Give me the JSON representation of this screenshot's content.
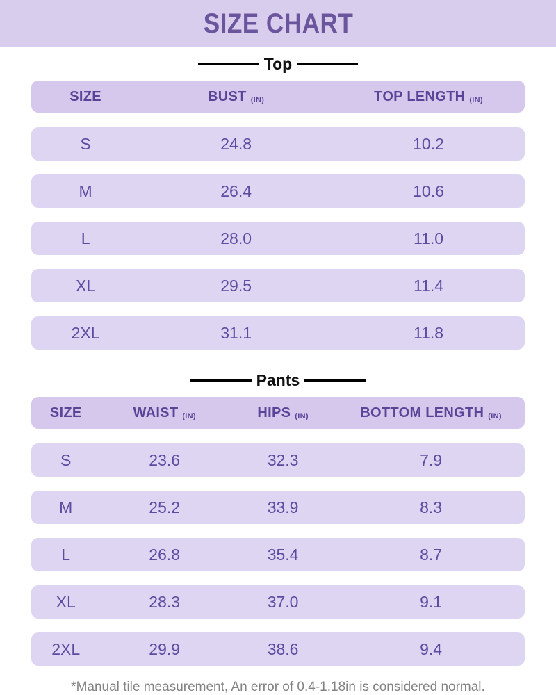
{
  "page": {
    "title": "SIZE CHART",
    "footnote": "*Manual tile measurement, An error of 0.4-1.18in is considered normal."
  },
  "colors": {
    "band_background": "#d9cdee",
    "header_row_background": "#d5c8ec",
    "data_row_background": "#ded5f2",
    "title_text": "#6b559c",
    "header_text": "#5a4497",
    "data_text": "#5c4ba0",
    "divider_line": "#000000",
    "footnote_text": "#828282"
  },
  "top_section": {
    "label": "Top",
    "columns": [
      {
        "label": "SIZE",
        "unit": ""
      },
      {
        "label": "BUST",
        "unit": "(IN)"
      },
      {
        "label": "TOP LENGTH",
        "unit": "(IN)"
      }
    ],
    "rows": [
      {
        "size": "S",
        "bust": "24.8",
        "length": "10.2"
      },
      {
        "size": "M",
        "bust": "26.4",
        "length": "10.6"
      },
      {
        "size": "L",
        "bust": "28.0",
        "length": "11.0"
      },
      {
        "size": "XL",
        "bust": "29.5",
        "length": "11.4"
      },
      {
        "size": "2XL",
        "bust": "31.1",
        "length": "11.8"
      }
    ]
  },
  "pants_section": {
    "label": "Pants",
    "columns": [
      {
        "label": "SIZE",
        "unit": ""
      },
      {
        "label": "WAIST",
        "unit": "(IN)"
      },
      {
        "label": "HIPS",
        "unit": "(IN)"
      },
      {
        "label": "BOTTOM LENGTH",
        "unit": "(IN)"
      }
    ],
    "rows": [
      {
        "size": "S",
        "waist": "23.6",
        "hips": "32.3",
        "length": "7.9"
      },
      {
        "size": "M",
        "waist": "25.2",
        "hips": "33.9",
        "length": "8.3"
      },
      {
        "size": "L",
        "waist": "26.8",
        "hips": "35.4",
        "length": "8.7"
      },
      {
        "size": "XL",
        "waist": "28.3",
        "hips": "37.0",
        "length": "9.1"
      },
      {
        "size": "2XL",
        "waist": "29.9",
        "hips": "38.6",
        "length": "9.4"
      }
    ]
  },
  "chart_data": [
    {
      "type": "table",
      "title": "Top",
      "columns": [
        "SIZE",
        "BUST (IN)",
        "TOP LENGTH (IN)"
      ],
      "rows": [
        [
          "S",
          24.8,
          10.2
        ],
        [
          "M",
          26.4,
          10.6
        ],
        [
          "L",
          28.0,
          11.0
        ],
        [
          "XL",
          29.5,
          11.4
        ],
        [
          "2XL",
          31.1,
          11.8
        ]
      ]
    },
    {
      "type": "table",
      "title": "Pants",
      "columns": [
        "SIZE",
        "WAIST (IN)",
        "HIPS (IN)",
        "BOTTOM LENGTH (IN)"
      ],
      "rows": [
        [
          "S",
          23.6,
          32.3,
          7.9
        ],
        [
          "M",
          25.2,
          33.9,
          8.3
        ],
        [
          "L",
          26.8,
          35.4,
          8.7
        ],
        [
          "XL",
          28.3,
          37.0,
          9.1
        ],
        [
          "2XL",
          29.9,
          38.6,
          9.4
        ]
      ]
    }
  ]
}
